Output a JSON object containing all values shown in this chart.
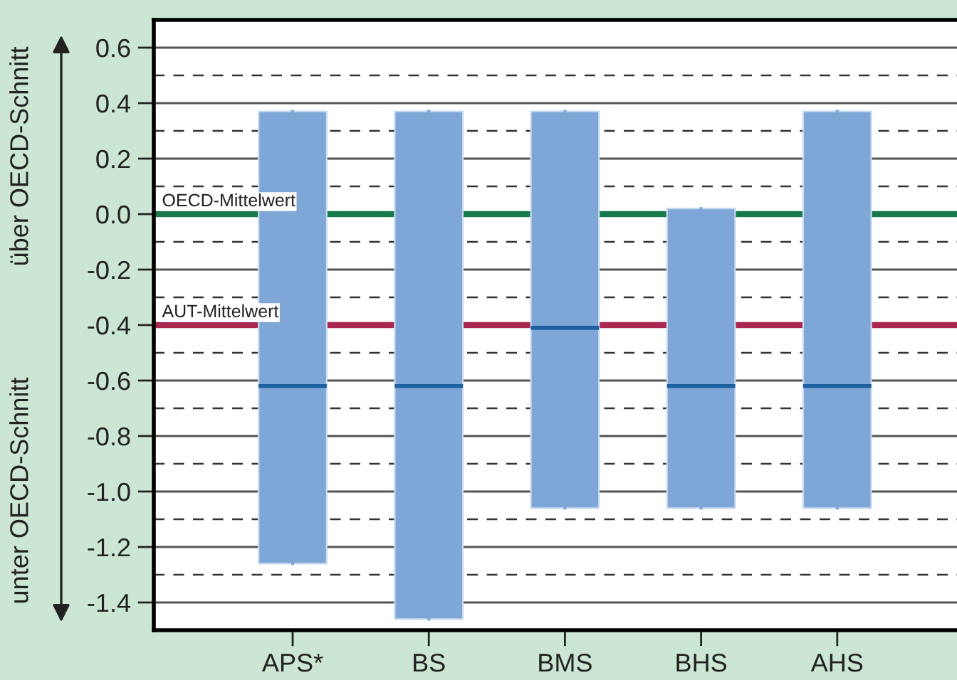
{
  "chart_data": {
    "type": "box",
    "ylabel": "über OECD-Schnitt",
    "annotations": [
      "unter OECD-Schnitt"
    ],
    "categories": [
      "APS*",
      "BS",
      "BMS",
      "BHS",
      "AHS"
    ],
    "boxes": [
      {
        "low": -1.26,
        "q1": -1.26,
        "median": -0.62,
        "q3": 0.37,
        "high": 0.37
      },
      {
        "low": -1.46,
        "q1": -1.46,
        "median": -0.62,
        "q3": 0.37,
        "high": 0.37
      },
      {
        "low": -1.06,
        "q1": -1.06,
        "median": -0.41,
        "q3": 0.37,
        "high": 0.37
      },
      {
        "low": -1.06,
        "q1": -1.06,
        "median": -0.62,
        "q3": 0.02,
        "high": 0.02
      },
      {
        "low": -1.06,
        "q1": -1.06,
        "median": -0.62,
        "q3": 0.37,
        "high": 0.37
      }
    ],
    "color": "#7ea7d8",
    "ylim": [
      -1.5,
      0.7
    ],
    "yticks": [
      0.6,
      0.4,
      0.2,
      {
        "value": 0,
        "label": "0.0"
      },
      -0.2,
      -0.4,
      -0.6,
      -0.8,
      {
        "value": -1,
        "label": "-1.0"
      },
      -1.2,
      -1.4
    ],
    "grid": "y",
    "ref_lines": [
      {
        "axis": "y",
        "value": 0.5,
        "line_style": "dashed",
        "color": "#333333"
      },
      {
        "axis": "y",
        "value": 0.3,
        "line_style": "dashed",
        "color": "#333333"
      },
      {
        "axis": "y",
        "value": 0.1,
        "line_style": "dashed",
        "color": "#333333"
      },
      {
        "axis": "y",
        "value": -0.1,
        "line_style": "dashed",
        "color": "#333333"
      },
      {
        "axis": "y",
        "value": -0.3,
        "line_style": "dashed",
        "color": "#333333"
      },
      {
        "axis": "y",
        "value": -0.5,
        "line_style": "dashed",
        "color": "#333333"
      },
      {
        "axis": "y",
        "value": -0.7,
        "line_style": "dashed",
        "color": "#333333"
      },
      {
        "axis": "y",
        "value": -0.9,
        "line_style": "dashed",
        "color": "#333333"
      },
      {
        "axis": "y",
        "value": -1.1,
        "line_style": "dashed",
        "color": "#333333"
      },
      {
        "axis": "y",
        "value": -1.3,
        "line_style": "dashed",
        "color": "#333333"
      },
      {
        "axis": "y",
        "value": 0,
        "label": "OECD-Mittelwert",
        "color": "#187a4a",
        "line_style": "solid"
      },
      {
        "axis": "y",
        "value": -0.4,
        "label": "AUT-Mittelwert",
        "color": "#a8284f",
        "line_style": "solid"
      }
    ]
  }
}
